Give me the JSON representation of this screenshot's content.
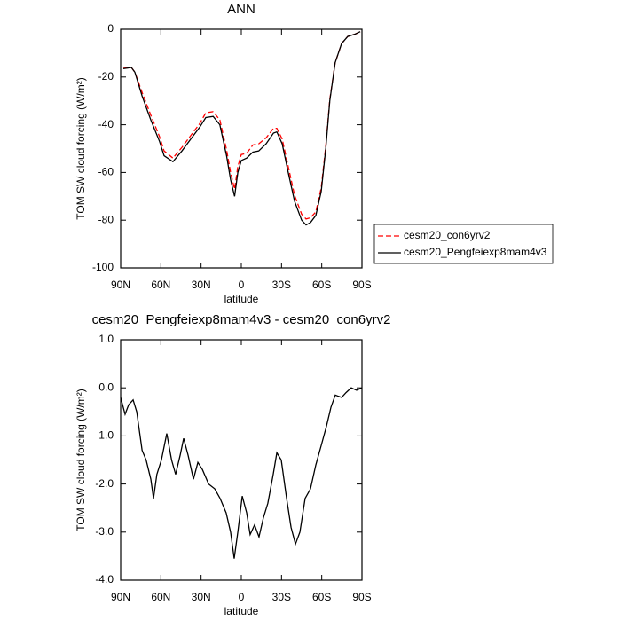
{
  "chart_data": [
    {
      "type": "line",
      "title": "ANN",
      "xlabel": "latitude",
      "ylabel": "TOM SW cloud forcing (W/m²)",
      "xlim": [
        90,
        -90
      ],
      "xticks": [
        {
          "value": 90,
          "label": "90N"
        },
        {
          "value": 60,
          "label": "60N"
        },
        {
          "value": 30,
          "label": "30N"
        },
        {
          "value": 0,
          "label": "0"
        },
        {
          "value": -30,
          "label": "30S"
        },
        {
          "value": -60,
          "label": "60S"
        },
        {
          "value": -90,
          "label": "90S"
        }
      ],
      "ylim": [
        -100,
        0
      ],
      "yticks": [
        -100,
        -80,
        -60,
        -40,
        -20,
        0
      ],
      "legend": "right",
      "x": [
        88,
        82,
        79.4,
        74,
        67.5,
        61,
        57.6,
        51,
        44.3,
        37.7,
        31,
        26.5,
        21,
        16,
        11,
        8,
        5,
        2.6,
        0,
        -4,
        -8.6,
        -13,
        -18.5,
        -24,
        -26.5,
        -30.5,
        -35,
        -39.7,
        -45,
        -48.3,
        -51.6,
        -55.6,
        -59.6,
        -63,
        -66,
        -70,
        -74.8,
        -79.4,
        -85,
        -88.7
      ],
      "series": [
        {
          "name": "cesm20_con6yrv2",
          "color": "#ff0000",
          "line_style": "dashed",
          "values": [
            -16.3,
            -16,
            -18,
            -26.5,
            -36,
            -45,
            -51,
            -54,
            -49.5,
            -44.5,
            -39.5,
            -35,
            -34.5,
            -38,
            -50.5,
            -60,
            -67,
            -57.5,
            -52.5,
            -52,
            -48.5,
            -48,
            -45.5,
            -41.5,
            -41.5,
            -46,
            -57.5,
            -69.5,
            -77.5,
            -79.5,
            -79,
            -76.5,
            -66.5,
            -49,
            -29.5,
            -14,
            -6,
            -3,
            -2,
            -1
          ]
        },
        {
          "name": "cesm20_Pengfeiexp8mam4v3",
          "color": "#000000",
          "line_style": "solid",
          "values": [
            -16.5,
            -16,
            -18,
            -28,
            -38,
            -47,
            -53,
            -55.5,
            -51,
            -46,
            -41,
            -37,
            -36.5,
            -40,
            -53,
            -63,
            -70,
            -60,
            -55,
            -54,
            -51.5,
            -51,
            -48,
            -43.5,
            -43,
            -48,
            -60,
            -72,
            -80,
            -82,
            -81,
            -78,
            -68,
            -50,
            -30,
            -14,
            -6,
            -3,
            -2,
            -1
          ]
        }
      ]
    },
    {
      "type": "line",
      "title": "cesm20_Pengfeiexp8mam4v3 - cesm20_con6yrv2",
      "xlabel": "latitude",
      "ylabel": "TOM SW cloud forcing (W/m²)",
      "xlim": [
        90,
        -90
      ],
      "xticks": [
        {
          "value": 90,
          "label": "90N"
        },
        {
          "value": 60,
          "label": "60N"
        },
        {
          "value": 30,
          "label": "30N"
        },
        {
          "value": 0,
          "label": "0"
        },
        {
          "value": -30,
          "label": "30S"
        },
        {
          "value": -60,
          "label": "60S"
        },
        {
          "value": -90,
          "label": "90S"
        }
      ],
      "ylim": [
        -4,
        1
      ],
      "yticks": [
        {
          "value": -4,
          "label": "-4.0"
        },
        {
          "value": -3,
          "label": "-3.0"
        },
        {
          "value": -2,
          "label": "-2.0"
        },
        {
          "value": -1,
          "label": "-1.0"
        },
        {
          "value": 0,
          "label": "0.0"
        },
        {
          "value": 1,
          "label": "1.0"
        }
      ],
      "x": [
        90,
        86.7,
        84,
        80.7,
        78,
        74,
        71,
        67.5,
        65.5,
        63,
        59.6,
        55.6,
        52,
        49,
        45.6,
        43,
        39.7,
        35.7,
        32.4,
        29,
        24.4,
        19.8,
        15.8,
        11.3,
        8,
        5.3,
        2.6,
        -0.7,
        -4,
        -6.6,
        -9.9,
        -13.2,
        -16.5,
        -19.8,
        -23.8,
        -26.5,
        -29.8,
        -33.8,
        -37.1,
        -40.4,
        -43.7,
        -47.6,
        -51.6,
        -55.6,
        -59.6,
        -63.5,
        -66.9,
        -70.1,
        -74.8,
        -78.1,
        -82,
        -86,
        -90
      ],
      "series": [
        {
          "color": "#000000",
          "line_style": "solid",
          "values": [
            -0.2,
            -0.55,
            -0.35,
            -0.25,
            -0.5,
            -1.3,
            -1.5,
            -1.9,
            -2.3,
            -1.8,
            -1.5,
            -0.95,
            -1.5,
            -1.8,
            -1.4,
            -1.05,
            -1.4,
            -1.9,
            -1.55,
            -1.7,
            -2.0,
            -2.1,
            -2.3,
            -2.6,
            -3.0,
            -3.55,
            -3.0,
            -2.25,
            -2.6,
            -3.05,
            -2.85,
            -3.1,
            -2.7,
            -2.4,
            -1.8,
            -1.35,
            -1.5,
            -2.3,
            -2.9,
            -3.25,
            -3.0,
            -2.3,
            -2.1,
            -1.6,
            -1.2,
            -0.8,
            -0.4,
            -0.15,
            -0.2,
            -0.1,
            0.0,
            -0.05,
            0.0
          ]
        }
      ]
    }
  ]
}
